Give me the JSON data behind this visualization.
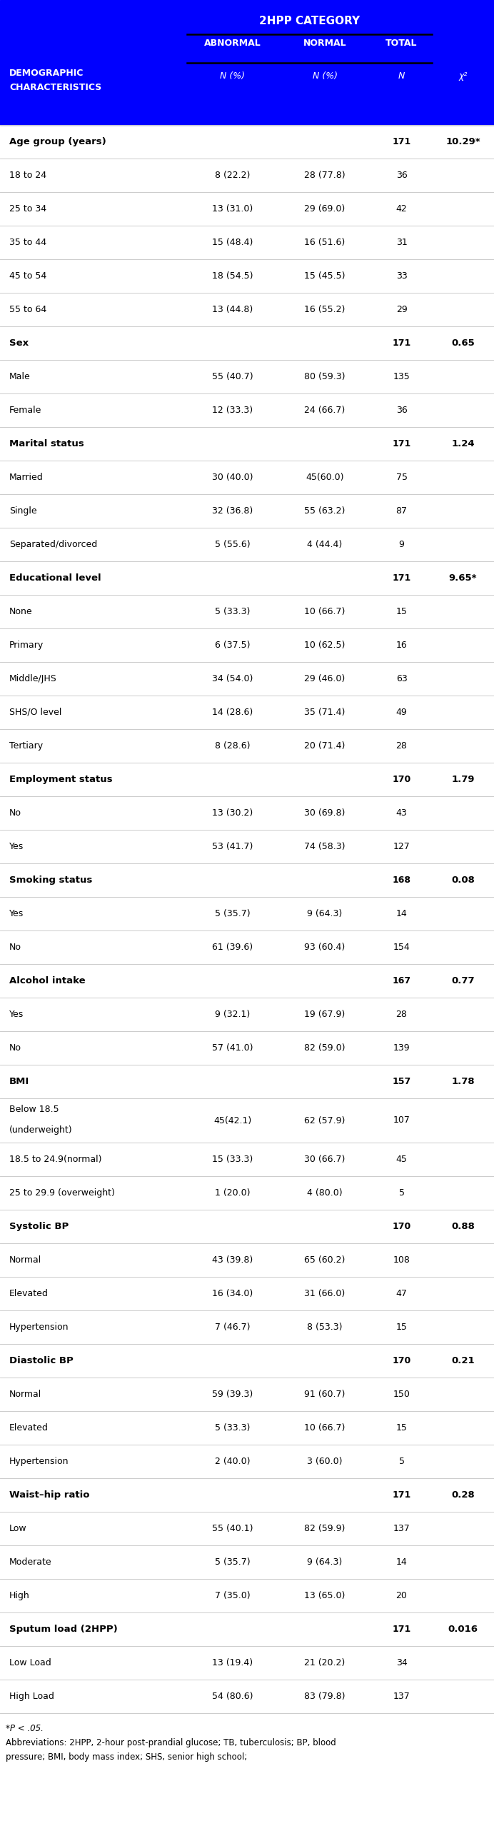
{
  "title": "2HPP CATEGORY",
  "header_bg": "#0000FF",
  "rows": [
    {
      "label": "Age group (years)",
      "abnormal": "",
      "normal": "",
      "total": "171",
      "chi2": "10.29*",
      "bold": true,
      "multiline": false
    },
    {
      "label": "18 to 24",
      "abnormal": "8 (22.2)",
      "normal": "28 (77.8)",
      "total": "36",
      "chi2": "",
      "bold": false,
      "multiline": false
    },
    {
      "label": "25 to 34",
      "abnormal": "13 (31.0)",
      "normal": "29 (69.0)",
      "total": "42",
      "chi2": "",
      "bold": false,
      "multiline": false
    },
    {
      "label": "35 to 44",
      "abnormal": "15 (48.4)",
      "normal": "16 (51.6)",
      "total": "31",
      "chi2": "",
      "bold": false,
      "multiline": false
    },
    {
      "label": "45 to 54",
      "abnormal": "18 (54.5)",
      "normal": "15 (45.5)",
      "total": "33",
      "chi2": "",
      "bold": false,
      "multiline": false
    },
    {
      "label": "55 to 64",
      "abnormal": "13 (44.8)",
      "normal": "16 (55.2)",
      "total": "29",
      "chi2": "",
      "bold": false,
      "multiline": false
    },
    {
      "label": "Sex",
      "abnormal": "",
      "normal": "",
      "total": "171",
      "chi2": "0.65",
      "bold": true,
      "multiline": false
    },
    {
      "label": "Male",
      "abnormal": "55 (40.7)",
      "normal": "80 (59.3)",
      "total": "135",
      "chi2": "",
      "bold": false,
      "multiline": false
    },
    {
      "label": "Female",
      "abnormal": "12 (33.3)",
      "normal": "24 (66.7)",
      "total": "36",
      "chi2": "",
      "bold": false,
      "multiline": false
    },
    {
      "label": "Marital status",
      "abnormal": "",
      "normal": "",
      "total": "171",
      "chi2": "1.24",
      "bold": true,
      "multiline": false
    },
    {
      "label": "Married",
      "abnormal": "30 (40.0)",
      "normal": "45(60.0)",
      "total": "75",
      "chi2": "",
      "bold": false,
      "multiline": false
    },
    {
      "label": "Single",
      "abnormal": "32 (36.8)",
      "normal": "55 (63.2)",
      "total": "87",
      "chi2": "",
      "bold": false,
      "multiline": false
    },
    {
      "label": "Separated/divorced",
      "abnormal": "5 (55.6)",
      "normal": "4 (44.4)",
      "total": "9",
      "chi2": "",
      "bold": false,
      "multiline": false
    },
    {
      "label": "Educational level",
      "abnormal": "",
      "normal": "",
      "total": "171",
      "chi2": "9.65*",
      "bold": true,
      "multiline": false
    },
    {
      "label": "None",
      "abnormal": "5 (33.3)",
      "normal": "10 (66.7)",
      "total": "15",
      "chi2": "",
      "bold": false,
      "multiline": false
    },
    {
      "label": "Primary",
      "abnormal": "6 (37.5)",
      "normal": "10 (62.5)",
      "total": "16",
      "chi2": "",
      "bold": false,
      "multiline": false
    },
    {
      "label": "Middle/JHS",
      "abnormal": "34 (54.0)",
      "normal": "29 (46.0)",
      "total": "63",
      "chi2": "",
      "bold": false,
      "multiline": false
    },
    {
      "label": "SHS/O level",
      "abnormal": "14 (28.6)",
      "normal": "35 (71.4)",
      "total": "49",
      "chi2": "",
      "bold": false,
      "multiline": false
    },
    {
      "label": "Tertiary",
      "abnormal": "8 (28.6)",
      "normal": "20 (71.4)",
      "total": "28",
      "chi2": "",
      "bold": false,
      "multiline": false
    },
    {
      "label": "Employment status",
      "abnormal": "",
      "normal": "",
      "total": "170",
      "chi2": "1.79",
      "bold": true,
      "multiline": false
    },
    {
      "label": "No",
      "abnormal": "13 (30.2)",
      "normal": "30 (69.8)",
      "total": "43",
      "chi2": "",
      "bold": false,
      "multiline": false
    },
    {
      "label": "Yes",
      "abnormal": "53 (41.7)",
      "normal": "74 (58.3)",
      "total": "127",
      "chi2": "",
      "bold": false,
      "multiline": false
    },
    {
      "label": "Smoking status",
      "abnormal": "",
      "normal": "",
      "total": "168",
      "chi2": "0.08",
      "bold": true,
      "multiline": false
    },
    {
      "label": "Yes",
      "abnormal": "5 (35.7)",
      "normal": "9 (64.3)",
      "total": "14",
      "chi2": "",
      "bold": false,
      "multiline": false
    },
    {
      "label": "No",
      "abnormal": "61 (39.6)",
      "normal": "93 (60.4)",
      "total": "154",
      "chi2": "",
      "bold": false,
      "multiline": false
    },
    {
      "label": "Alcohol intake",
      "abnormal": "",
      "normal": "",
      "total": "167",
      "chi2": "0.77",
      "bold": true,
      "multiline": false
    },
    {
      "label": "Yes",
      "abnormal": "9 (32.1)",
      "normal": "19 (67.9)",
      "total": "28",
      "chi2": "",
      "bold": false,
      "multiline": false
    },
    {
      "label": "No",
      "abnormal": "57 (41.0)",
      "normal": "82 (59.0)",
      "total": "139",
      "chi2": "",
      "bold": false,
      "multiline": false
    },
    {
      "label": "BMI",
      "abnormal": "",
      "normal": "",
      "total": "157",
      "chi2": "1.78",
      "bold": true,
      "multiline": false
    },
    {
      "label": "Below 18.5\n(underweight)",
      "abnormal": "45(42.1)",
      "normal": "62 (57.9)",
      "total": "107",
      "chi2": "",
      "bold": false,
      "multiline": true
    },
    {
      "label": "18.5 to 24.9(normal)",
      "abnormal": "15 (33.3)",
      "normal": "30 (66.7)",
      "total": "45",
      "chi2": "",
      "bold": false,
      "multiline": false
    },
    {
      "label": "25 to 29.9 (overweight)",
      "abnormal": "1 (20.0)",
      "normal": "4 (80.0)",
      "total": "5",
      "chi2": "",
      "bold": false,
      "multiline": false
    },
    {
      "label": "Systolic BP",
      "abnormal": "",
      "normal": "",
      "total": "170",
      "chi2": "0.88",
      "bold": true,
      "multiline": false
    },
    {
      "label": "Normal",
      "abnormal": "43 (39.8)",
      "normal": "65 (60.2)",
      "total": "108",
      "chi2": "",
      "bold": false,
      "multiline": false
    },
    {
      "label": "Elevated",
      "abnormal": "16 (34.0)",
      "normal": "31 (66.0)",
      "total": "47",
      "chi2": "",
      "bold": false,
      "multiline": false
    },
    {
      "label": "Hypertension",
      "abnormal": "7 (46.7)",
      "normal": "8 (53.3)",
      "total": "15",
      "chi2": "",
      "bold": false,
      "multiline": false
    },
    {
      "label": "Diastolic BP",
      "abnormal": "",
      "normal": "",
      "total": "170",
      "chi2": "0.21",
      "bold": true,
      "multiline": false
    },
    {
      "label": "Normal",
      "abnormal": "59 (39.3)",
      "normal": "91 (60.7)",
      "total": "150",
      "chi2": "",
      "bold": false,
      "multiline": false
    },
    {
      "label": "Elevated",
      "abnormal": "5 (33.3)",
      "normal": "10 (66.7)",
      "total": "15",
      "chi2": "",
      "bold": false,
      "multiline": false
    },
    {
      "label": "Hypertension",
      "abnormal": "2 (40.0)",
      "normal": "3 (60.0)",
      "total": "5",
      "chi2": "",
      "bold": false,
      "multiline": false
    },
    {
      "label": "Waist–hip ratio",
      "abnormal": "",
      "normal": "",
      "total": "171",
      "chi2": "0.28",
      "bold": true,
      "multiline": false
    },
    {
      "label": "Low",
      "abnormal": "55 (40.1)",
      "normal": "82 (59.9)",
      "total": "137",
      "chi2": "",
      "bold": false,
      "multiline": false
    },
    {
      "label": "Moderate",
      "abnormal": "5 (35.7)",
      "normal": "9 (64.3)",
      "total": "14",
      "chi2": "",
      "bold": false,
      "multiline": false
    },
    {
      "label": "High",
      "abnormal": "7 (35.0)",
      "normal": "13 (65.0)",
      "total": "20",
      "chi2": "",
      "bold": false,
      "multiline": false
    },
    {
      "label": "Sputum load (2HPP)",
      "abnormal": "",
      "normal": "",
      "total": "171",
      "chi2": "0.016",
      "bold": true,
      "multiline": false
    },
    {
      "label": "Low Load",
      "abnormal": "13 (19.4)",
      "normal": "21 (20.2)",
      "total": "34",
      "chi2": "",
      "bold": false,
      "multiline": false
    },
    {
      "label": "High Load",
      "abnormal": "54 (80.6)",
      "normal": "83 (79.8)",
      "total": "137",
      "chi2": "",
      "bold": false,
      "multiline": false
    }
  ],
  "footnote_lines": [
    "*P < .05.",
    "Abbreviations: 2HPP, 2-hour post-prandial glucose; TB, tuberculosis; BP, blood",
    "pressure; BMI, body mass index; SHS, senior high school;"
  ]
}
